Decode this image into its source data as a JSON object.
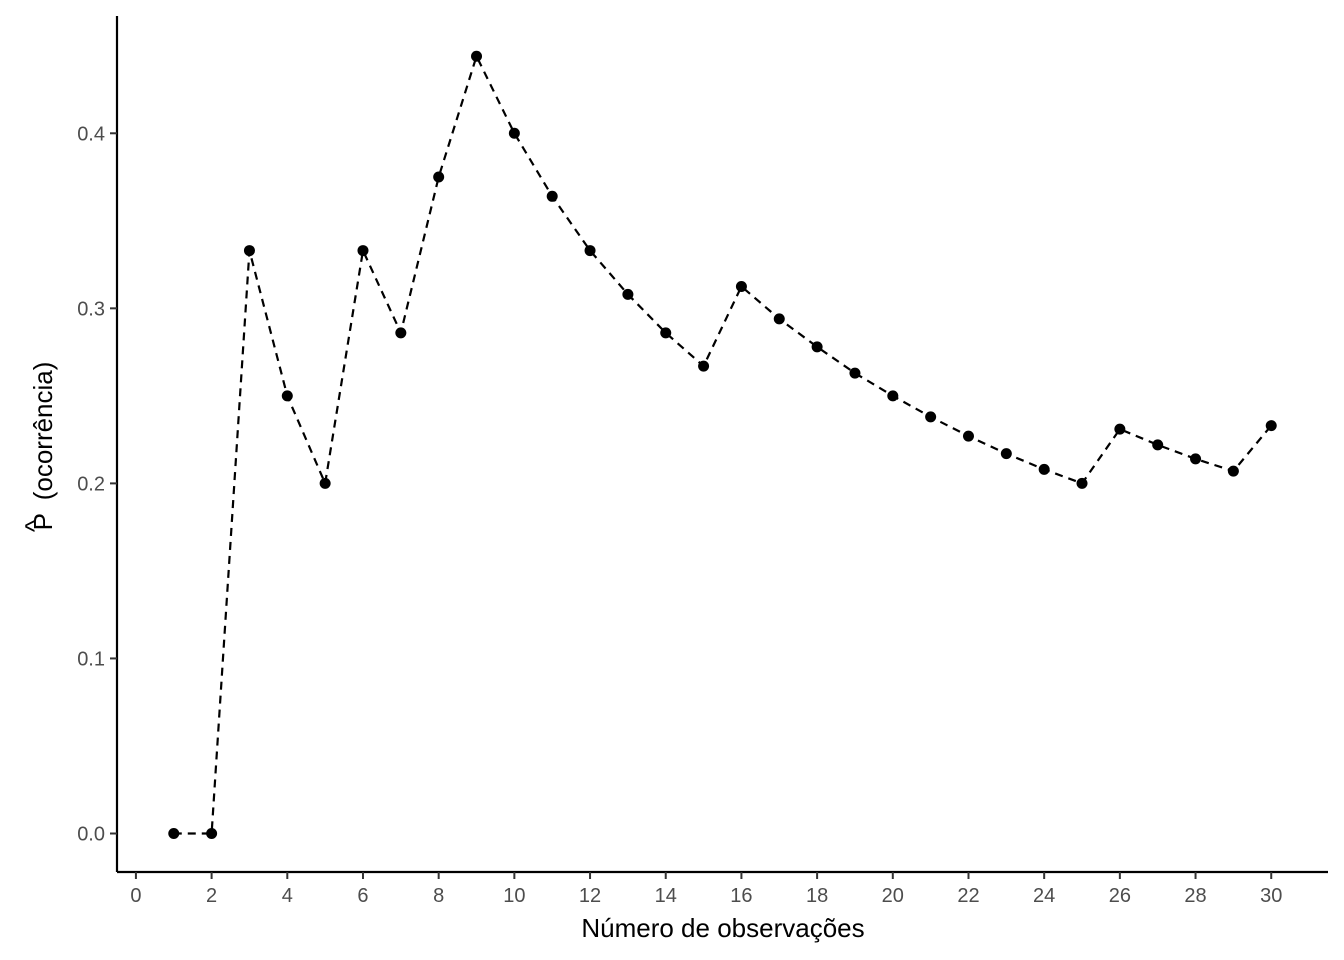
{
  "chart_data": {
    "type": "line",
    "title": "",
    "xlabel": "Número de observações",
    "ylabel_symbol": "P",
    "ylabel_text": "(ocorrência)",
    "xlim": [
      -0.5,
      31.5
    ],
    "ylim": [
      -0.022,
      0.467
    ],
    "x_ticks": [
      0,
      2,
      4,
      6,
      8,
      10,
      12,
      14,
      16,
      18,
      20,
      22,
      24,
      26,
      28,
      30
    ],
    "y_ticks": [
      0.0,
      0.1,
      0.2,
      0.3,
      0.4
    ],
    "y_tick_labels": [
      "0.0",
      "0.1",
      "0.2",
      "0.3",
      "0.4"
    ],
    "grid": false,
    "line_style": "dashed",
    "marker": "circle",
    "color": "#000000",
    "series": [
      {
        "x": [
          1,
          2,
          3,
          4,
          5,
          6,
          7,
          8,
          9,
          10,
          11,
          12,
          13,
          14,
          15,
          16,
          17,
          18,
          19,
          20,
          21,
          22,
          23,
          24,
          25,
          26,
          27,
          28,
          29,
          30
        ],
        "values": [
          0.0,
          0.0,
          0.333,
          0.25,
          0.2,
          0.333,
          0.286,
          0.375,
          0.444,
          0.4,
          0.364,
          0.333,
          0.308,
          0.286,
          0.267,
          0.3125,
          0.294,
          0.278,
          0.263,
          0.25,
          0.238,
          0.227,
          0.217,
          0.208,
          0.2,
          0.231,
          0.222,
          0.214,
          0.207,
          0.233
        ]
      }
    ]
  }
}
